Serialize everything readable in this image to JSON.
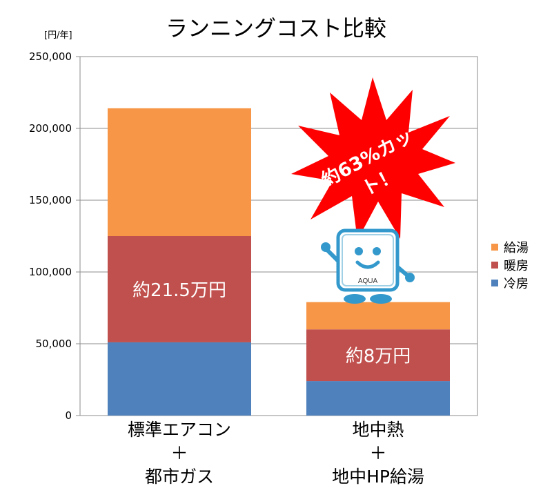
{
  "colors": {
    "cooling": "#4f81bd",
    "heating": "#c0504d",
    "hotwater": "#f79646",
    "callout": "#ff0000",
    "mascot": "#3399cc"
  },
  "unit_label": "[円/年]",
  "callout": {
    "text": "約63%カット！",
    "icon": "red-starburst-icon"
  },
  "mascot": {
    "text": "AQUA",
    "icon": "aqua-mascot-icon"
  },
  "chart_data": {
    "type": "bar",
    "stacked": true,
    "title": "ランニングコスト比較",
    "xlabel": "",
    "ylabel": "[円/年]",
    "ylim": [
      0,
      250000
    ],
    "yticks": [
      "0",
      "50,000",
      "100,000",
      "150,000",
      "200,000",
      "250,000"
    ],
    "ytick_values": [
      0,
      50000,
      100000,
      150000,
      200000,
      250000
    ],
    "grid": true,
    "legend_position": "right",
    "categories": [
      {
        "lines": [
          "標準エアコン",
          "＋",
          "都市ガス"
        ]
      },
      {
        "lines": [
          "地中熱",
          "＋",
          "地中HP給湯"
        ]
      }
    ],
    "series": [
      {
        "name": "冷房",
        "color": "#4f81bd",
        "values": [
          51000,
          24000
        ]
      },
      {
        "name": "暖房",
        "color": "#c0504d",
        "values": [
          74000,
          36000
        ]
      },
      {
        "name": "給湯",
        "color": "#f79646",
        "values": [
          89000,
          19000
        ]
      }
    ],
    "bar_labels": [
      "約21.5万円",
      "約8万円"
    ],
    "legend_order": [
      "給湯",
      "暖房",
      "冷房"
    ]
  }
}
